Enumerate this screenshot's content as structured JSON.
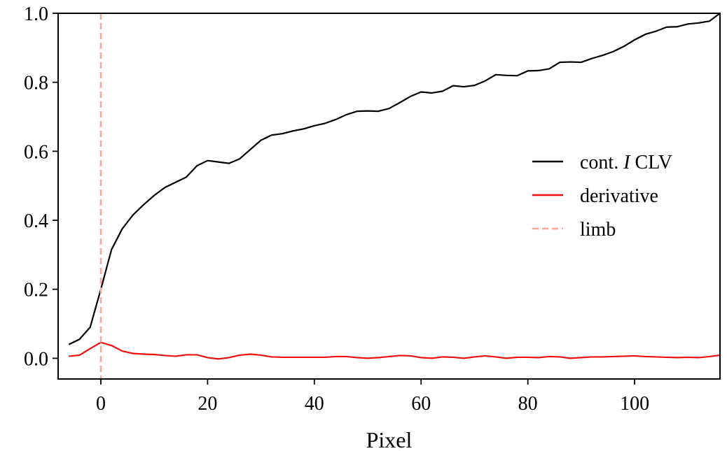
{
  "chart_data": {
    "type": "line",
    "xlabel": "Pixel",
    "ylabel": "",
    "xlim": [
      -8,
      116
    ],
    "ylim": [
      -0.06,
      1.0
    ],
    "xticks": [
      0,
      20,
      40,
      60,
      80,
      100
    ],
    "xtick_labels": [
      "0",
      "20",
      "40",
      "60",
      "80",
      "100"
    ],
    "yticks": [
      0.0,
      0.2,
      0.4,
      0.6,
      0.8,
      1.0
    ],
    "ytick_labels": [
      "0.0",
      "0.2",
      "0.4",
      "0.6",
      "0.8",
      "1.0"
    ],
    "grid": false,
    "legend_position": "right",
    "series": [
      {
        "name": "cont. I CLV",
        "legend_parts": {
          "prefix": "cont. ",
          "italic": "I",
          "suffix": " CLV"
        },
        "color": "#000000",
        "style": "solid",
        "x": [
          -6,
          -4,
          -2,
          0,
          2,
          4,
          6,
          8,
          10,
          12,
          14,
          16,
          18,
          20,
          22,
          24,
          26,
          28,
          30,
          32,
          34,
          36,
          38,
          40,
          42,
          44,
          46,
          48,
          50,
          52,
          54,
          56,
          58,
          60,
          62,
          64,
          66,
          68,
          70,
          72,
          74,
          76,
          78,
          80,
          82,
          84,
          86,
          88,
          90,
          92,
          94,
          96,
          98,
          100,
          102,
          104,
          106,
          108,
          110,
          112,
          114,
          116
        ],
        "y": [
          0.04,
          0.055,
          0.09,
          0.2,
          0.315,
          0.375,
          0.415,
          0.445,
          0.472,
          0.495,
          0.51,
          0.525,
          0.558,
          0.573,
          0.569,
          0.565,
          0.578,
          0.605,
          0.632,
          0.647,
          0.651,
          0.659,
          0.665,
          0.674,
          0.681,
          0.692,
          0.706,
          0.716,
          0.717,
          0.716,
          0.724,
          0.741,
          0.759,
          0.772,
          0.769,
          0.774,
          0.79,
          0.787,
          0.791,
          0.804,
          0.822,
          0.82,
          0.819,
          0.833,
          0.834,
          0.839,
          0.858,
          0.859,
          0.858,
          0.869,
          0.878,
          0.889,
          0.904,
          0.923,
          0.939,
          0.948,
          0.96,
          0.961,
          0.969,
          0.972,
          0.977,
          1.0
        ]
      },
      {
        "name": "derivative",
        "color": "#ee1111",
        "style": "solid",
        "x": [
          -6,
          -4,
          -2,
          0,
          2,
          4,
          6,
          8,
          10,
          12,
          14,
          16,
          18,
          20,
          22,
          24,
          26,
          28,
          30,
          32,
          34,
          36,
          38,
          40,
          42,
          44,
          46,
          48,
          50,
          52,
          54,
          56,
          58,
          60,
          62,
          64,
          66,
          68,
          70,
          72,
          74,
          76,
          78,
          80,
          82,
          84,
          86,
          88,
          90,
          92,
          94,
          96,
          98,
          100,
          102,
          104,
          106,
          108,
          110,
          112,
          114,
          116
        ],
        "y": [
          0.006,
          0.009,
          0.028,
          0.046,
          0.037,
          0.021,
          0.014,
          0.012,
          0.011,
          0.008,
          0.006,
          0.01,
          0.01,
          0.002,
          -0.002,
          0.002,
          0.009,
          0.012,
          0.009,
          0.004,
          0.003,
          0.003,
          0.003,
          0.003,
          0.003,
          0.005,
          0.005,
          0.002,
          0.0,
          0.002,
          0.005,
          0.008,
          0.007,
          0.002,
          0.0,
          0.004,
          0.003,
          0.0,
          0.004,
          0.007,
          0.004,
          0.0,
          0.003,
          0.003,
          0.002,
          0.005,
          0.004,
          0.0,
          0.002,
          0.004,
          0.004,
          0.005,
          0.006,
          0.007,
          0.005,
          0.004,
          0.003,
          0.002,
          0.003,
          0.002,
          0.005,
          0.009
        ]
      },
      {
        "name": "limb",
        "color": "#ffa899",
        "style": "dashed",
        "vertical_line_x": 0
      }
    ]
  }
}
